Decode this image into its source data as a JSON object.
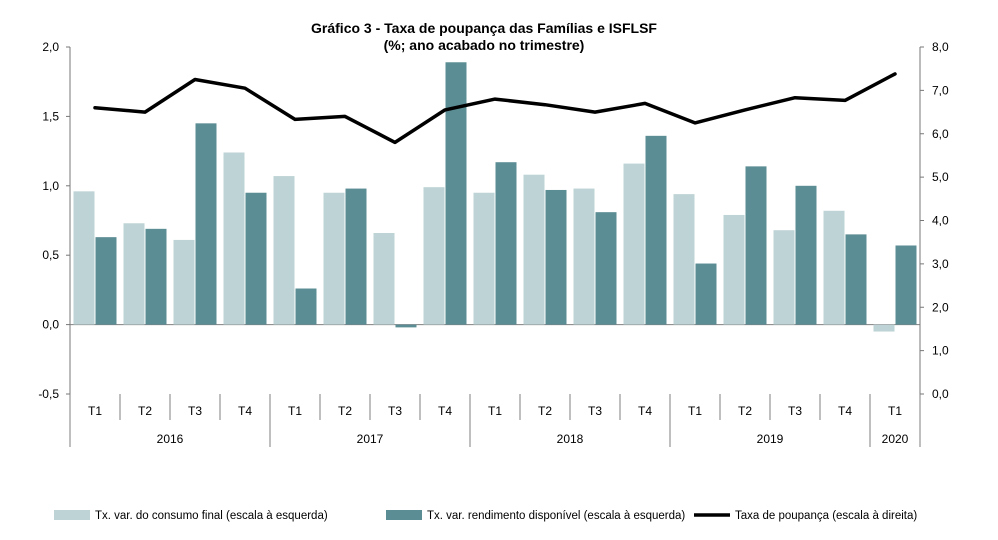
{
  "chart_data": {
    "type": "bar+line",
    "title": "Gráfico  3 - Taxa de poupança das Famílias e ISFLSF",
    "subtitle": "(%; ano acabado no trimestre)",
    "left_axis": {
      "min": -0.5,
      "max": 2.0,
      "step": 0.5,
      "tick_labels": [
        "-0,5",
        "0,0",
        "0,5",
        "1,0",
        "1,5",
        "2,0"
      ]
    },
    "right_axis": {
      "min": 0.0,
      "max": 8.0,
      "step": 1.0,
      "tick_labels": [
        "0,0",
        "1,0",
        "2,0",
        "3,0",
        "4,0",
        "5,0",
        "6,0",
        "7,0",
        "8,0"
      ]
    },
    "quarters": [
      "T1",
      "T2",
      "T3",
      "T4",
      "T1",
      "T2",
      "T3",
      "T4",
      "T1",
      "T2",
      "T3",
      "T4",
      "T1",
      "T2",
      "T3",
      "T4",
      "T1"
    ],
    "years": [
      {
        "label": "2016",
        "start": 0,
        "count": 4
      },
      {
        "label": "2017",
        "start": 4,
        "count": 4
      },
      {
        "label": "2018",
        "start": 8,
        "count": 4
      },
      {
        "label": "2019",
        "start": 12,
        "count": 4
      },
      {
        "label": "2020",
        "start": 16,
        "count": 1
      }
    ],
    "series": [
      {
        "name": "Tx. var. do consumo final (escala à esquerda)",
        "type": "bar",
        "axis": "left",
        "color": "#bdd3d5",
        "values": [
          0.96,
          0.73,
          0.61,
          1.24,
          1.07,
          0.95,
          0.66,
          0.99,
          0.95,
          1.08,
          0.98,
          1.16,
          0.94,
          0.79,
          0.68,
          0.82,
          -0.05
        ]
      },
      {
        "name": "Tx. var. rendimento disponível (escala à esquerda)",
        "type": "bar",
        "axis": "left",
        "color": "#5b8d94",
        "values": [
          0.63,
          0.69,
          1.45,
          0.95,
          0.26,
          0.98,
          -0.02,
          1.89,
          1.17,
          0.97,
          0.81,
          1.36,
          0.44,
          1.14,
          1.0,
          0.65,
          0.57
        ]
      },
      {
        "name": "Taxa de poupança (escala à direita)",
        "type": "line",
        "axis": "right",
        "color": "#000000",
        "values": [
          6.6,
          6.5,
          7.25,
          7.05,
          6.33,
          6.4,
          5.8,
          6.55,
          6.8,
          6.67,
          6.5,
          6.7,
          6.25,
          6.55,
          6.83,
          6.77,
          7.38
        ]
      }
    ]
  }
}
